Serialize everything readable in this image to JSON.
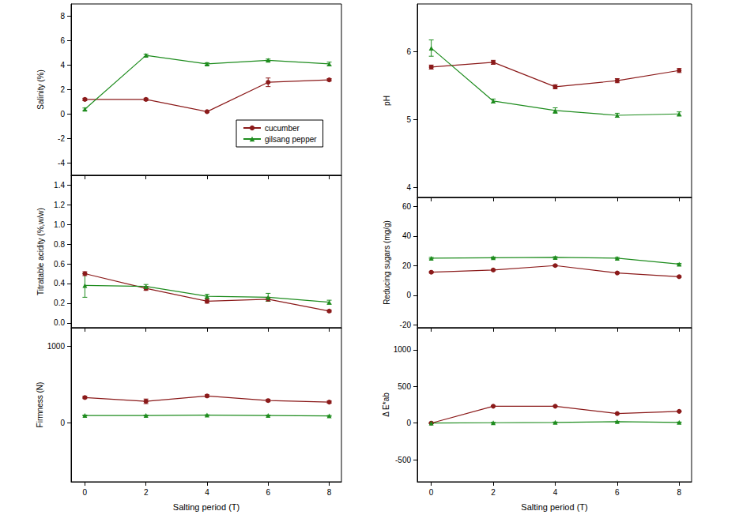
{
  "chart_data": [
    {
      "type": "line",
      "y_label": "Salinity (%)",
      "x": [
        0,
        2,
        4,
        6,
        8
      ],
      "xlim": [
        -0.45,
        8.4
      ],
      "xticks": [
        0,
        2,
        4,
        6,
        8
      ],
      "ylim": [
        -5,
        9
      ],
      "yticks": [
        -4,
        -2,
        0,
        2,
        4,
        6,
        8
      ],
      "tick_labels": "y",
      "grid": false,
      "legend": "lower right",
      "series": [
        {
          "name": "cucumber",
          "color": "#8b1a1a",
          "marker": "circle",
          "values": [
            1.2,
            1.2,
            0.2,
            2.6,
            2.8
          ],
          "errors": [
            0.1,
            0.1,
            0.05,
            0.35,
            0.1
          ]
        },
        {
          "name": "gilsang pepper",
          "color": "#1e8c1e",
          "marker": "triangle",
          "values": [
            0.4,
            4.8,
            4.1,
            4.4,
            4.1
          ],
          "errors": [
            0.1,
            0.1,
            0.1,
            0.1,
            0.15
          ]
        }
      ]
    },
    {
      "type": "line",
      "y_label": "pH",
      "x": [
        0,
        2,
        4,
        6,
        8
      ],
      "xlim": [
        -0.45,
        8.4
      ],
      "xticks": [
        0,
        2,
        4,
        6,
        8
      ],
      "ylim": [
        3.85,
        6.7
      ],
      "yticks": [
        4,
        5,
        6
      ],
      "tick_labels": "y",
      "grid": false,
      "series": [
        {
          "name": "cucumber",
          "color": "#8b1a1a",
          "marker": "circle",
          "values": [
            5.77,
            5.84,
            5.48,
            5.57,
            5.72
          ],
          "errors": [
            0.03,
            0.03,
            0.03,
            0.03,
            0.03
          ]
        },
        {
          "name": "gilsang pepper",
          "color": "#1e8c1e",
          "marker": "triangle",
          "values": [
            6.05,
            5.27,
            5.13,
            5.06,
            5.08
          ],
          "errors": [
            0.12,
            0.03,
            0.04,
            0.03,
            0.03
          ]
        }
      ]
    },
    {
      "type": "line",
      "y_label": "Titratable acidity (%,w/w)",
      "x": [
        0,
        2,
        4,
        6,
        8
      ],
      "xlim": [
        -0.45,
        8.4
      ],
      "xticks": [
        0,
        2,
        4,
        6,
        8
      ],
      "ylim": [
        -0.05,
        1.5
      ],
      "yticks": [
        {
          "value": 0,
          "label": "0.0"
        },
        0.2,
        0.4,
        0.6,
        0.8,
        {
          "value": 1,
          "label": "1.0"
        },
        1.2,
        1.4
      ],
      "tick_labels": "y",
      "grid": false,
      "series": [
        {
          "name": "cucumber",
          "color": "#8b1a1a",
          "marker": "circle",
          "values": [
            0.5,
            0.35,
            0.22,
            0.24,
            0.12
          ],
          "errors": [
            0.02,
            0.02,
            0.02,
            0.02,
            0.01
          ]
        },
        {
          "name": "gilsang pepper",
          "color": "#1e8c1e",
          "marker": "triangle",
          "values": [
            0.38,
            0.37,
            0.27,
            0.26,
            0.21
          ],
          "errors": [
            0.12,
            0.02,
            0.02,
            0.04,
            0.02
          ]
        }
      ]
    },
    {
      "type": "line",
      "y_label": "Reducing sugars (mg/g)",
      "x": [
        0,
        2,
        4,
        6,
        8
      ],
      "xlim": [
        -0.45,
        8.4
      ],
      "xticks": [
        0,
        2,
        4,
        6,
        8
      ],
      "ylim": [
        -22,
        66
      ],
      "yticks": [
        -20,
        0,
        20,
        40,
        60
      ],
      "tick_labels": "y",
      "grid": false,
      "series": [
        {
          "name": "cucumber",
          "color": "#8b1a1a",
          "marker": "circle",
          "values": [
            15.5,
            17,
            20,
            15,
            12.5
          ],
          "errors": [
            0.5,
            0.5,
            0.5,
            0.5,
            0.5
          ]
        },
        {
          "name": "gilsang pepper",
          "color": "#1e8c1e",
          "marker": "triangle",
          "values": [
            25,
            25.3,
            25.5,
            25,
            21
          ],
          "errors": [
            0.5,
            0.5,
            0.5,
            0.5,
            0.5
          ]
        }
      ]
    },
    {
      "type": "line",
      "y_label": "Firmness (N)",
      "x_label": "Salting period (T)",
      "x": [
        0,
        2,
        4,
        6,
        8
      ],
      "xlim": [
        -0.45,
        8.4
      ],
      "xticks": [
        0,
        2,
        4,
        6,
        8
      ],
      "ylim": [
        -770,
        1240
      ],
      "yticks": [
        0,
        1000
      ],
      "grid": false,
      "series": [
        {
          "name": "cucumber",
          "color": "#8b1a1a",
          "marker": "circle",
          "values": [
            330,
            280,
            350,
            290,
            270
          ],
          "errors": [
            15,
            30,
            15,
            15,
            15
          ]
        },
        {
          "name": "gilsang pepper",
          "color": "#1e8c1e",
          "marker": "triangle",
          "values": [
            95,
            95,
            100,
            95,
            90
          ],
          "errors": [
            5,
            5,
            5,
            5,
            5
          ]
        }
      ]
    },
    {
      "type": "line",
      "y_label": "Δ E*ab",
      "x_label": "Salting period (T)",
      "x": [
        0,
        2,
        4,
        6,
        8
      ],
      "xlim": [
        -0.45,
        8.4
      ],
      "xticks": [
        0,
        2,
        4,
        6,
        8
      ],
      "ylim": [
        -800,
        1300
      ],
      "yticks": [
        -500,
        0,
        500,
        1000
      ],
      "grid": false,
      "series": [
        {
          "name": "cucumber",
          "color": "#8b1a1a",
          "marker": "circle",
          "values": [
            0,
            230,
            230,
            130,
            160
          ],
          "errors": [
            5,
            5,
            5,
            5,
            5
          ]
        },
        {
          "name": "gilsang pepper",
          "color": "#1e8c1e",
          "marker": "triangle",
          "values": [
            0,
            5,
            10,
            20,
            10
          ],
          "errors": [
            5,
            5,
            5,
            5,
            5
          ]
        }
      ]
    }
  ]
}
